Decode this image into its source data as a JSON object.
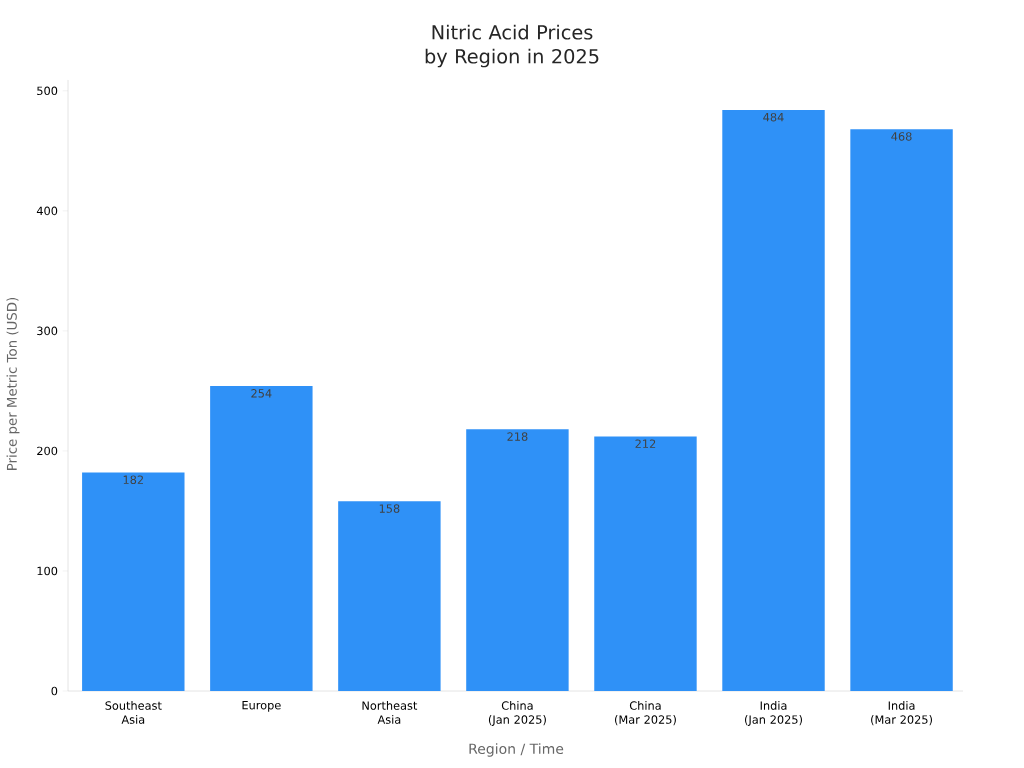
{
  "chart_data": {
    "type": "bar",
    "title": "Nitric Acid Prices by Region in 2025",
    "xlabel": "Region / Time",
    "ylabel": "Price per Metric Ton (USD)",
    "categories": [
      "Southeast\nAsia",
      "Europe",
      "Northeast\nAsia",
      "China\n(Jan 2025)",
      "China\n(Mar 2025)",
      "India\n(Jan 2025)",
      "India\n(Mar 2025)"
    ],
    "values": [
      182,
      254,
      158,
      218,
      212,
      484,
      468
    ],
    "color": "#2f91f7",
    "ylim": [
      0,
      509
    ],
    "yticks": [
      0,
      100,
      200,
      300,
      400,
      500
    ],
    "data_labels": true
  }
}
